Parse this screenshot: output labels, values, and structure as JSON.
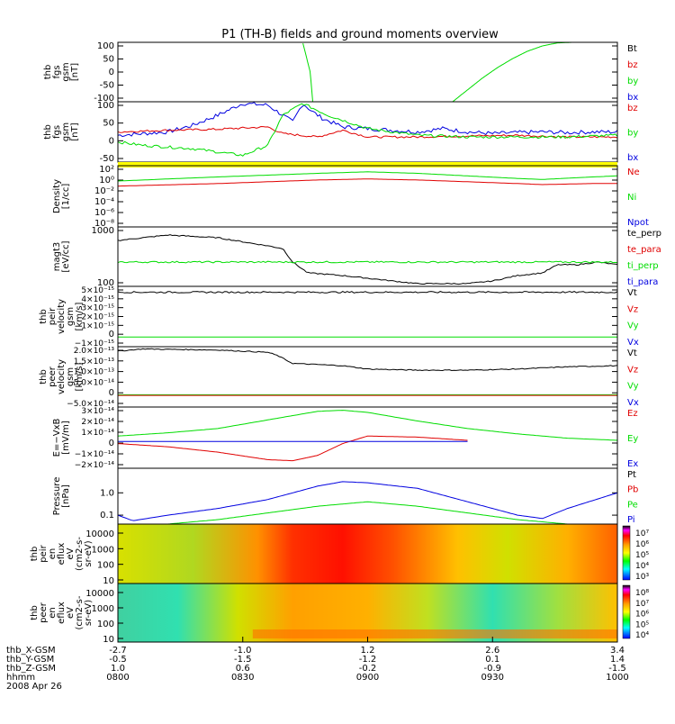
{
  "title": "P1 (TH-B) fields and ground moments overview",
  "colors": {
    "black": "#000000",
    "red": "#e00000",
    "green": "#00dd00",
    "blue": "#0000e0",
    "yellow": "#ffff00"
  },
  "chart_data": [
    {
      "id": "bt_panel",
      "type": "line",
      "ylabel": [
        "thb",
        "fgs",
        "gsm",
        "[nT]"
      ],
      "yticks": [
        "100",
        "50",
        "0",
        "-50",
        "-100"
      ],
      "ylim": [
        -100,
        100
      ],
      "legend": [
        {
          "label": "Bt",
          "color": "black"
        },
        {
          "label": "bz",
          "color": "red"
        },
        {
          "label": "by",
          "color": "green"
        },
        {
          "label": "bx",
          "color": "blue"
        }
      ],
      "series": [
        {
          "color": "green",
          "x": [
            0,
            0.37,
            0.385,
            0.39
          ],
          "y": [
            null,
            100,
            0,
            -100
          ]
        },
        {
          "color": "green",
          "x": [
            0.67,
            0.7,
            0.73,
            0.76,
            0.79,
            0.82,
            0.85,
            0.88,
            0.91
          ],
          "y": [
            -100,
            -60,
            -20,
            15,
            45,
            70,
            88,
            98,
            100
          ]
        }
      ]
    },
    {
      "id": "bfield_panel",
      "type": "line",
      "ylabel": [
        "thb",
        "fgs",
        "gsm",
        "[nT]"
      ],
      "yticks": [
        "100",
        "50",
        "0",
        "-50"
      ],
      "ylim": [
        -80,
        100
      ],
      "legend": [
        {
          "label": "bz",
          "color": "red"
        },
        {
          "label": "by",
          "color": "green"
        },
        {
          "label": "bx",
          "color": "blue"
        }
      ],
      "series": [
        {
          "color": "blue",
          "noise": 6,
          "x": [
            0,
            0.05,
            0.1,
            0.15,
            0.2,
            0.25,
            0.3,
            0.33,
            0.35,
            0.37,
            0.39,
            0.41,
            0.45,
            0.5,
            0.55,
            0.6,
            0.65,
            0.7,
            0.75,
            0.8,
            0.85,
            0.9,
            0.95,
            1.0
          ],
          "y": [
            0,
            5,
            10,
            30,
            60,
            95,
            90,
            60,
            40,
            95,
            70,
            50,
            25,
            20,
            15,
            10,
            20,
            10,
            5,
            8,
            10,
            8,
            10,
            10
          ]
        },
        {
          "color": "red",
          "noise": 3,
          "x": [
            0,
            0.1,
            0.2,
            0.3,
            0.33,
            0.4,
            0.45,
            0.5,
            0.6,
            0.7,
            0.8,
            0.9,
            1.0
          ],
          "y": [
            10,
            15,
            18,
            25,
            5,
            -5,
            15,
            -5,
            -5,
            -2,
            0,
            -5,
            -5
          ]
        },
        {
          "color": "green",
          "noise": 4,
          "x": [
            0,
            0.05,
            0.1,
            0.15,
            0.2,
            0.25,
            0.3,
            0.33,
            0.37,
            0.42,
            0.46,
            0.5,
            0.6,
            0.7,
            0.8,
            0.9,
            1.0
          ],
          "y": [
            -20,
            -30,
            -35,
            -40,
            -50,
            -60,
            -30,
            60,
            95,
            60,
            40,
            20,
            0,
            -5,
            -5,
            -5,
            0
          ]
        }
      ]
    },
    {
      "id": "density_panel",
      "type": "line",
      "log": true,
      "ylabel": [
        "Density",
        "[1/cc]"
      ],
      "yticks": [
        "10²",
        "10⁰",
        "10⁻²",
        "10⁻⁴",
        "10⁻⁶",
        "10⁻⁸"
      ],
      "ylim": [
        -9,
        3
      ],
      "legend": [
        {
          "label": "Ne",
          "color": "red"
        },
        {
          "label": "Ni",
          "color": "green"
        },
        {
          "label": "Npot",
          "color": "blue"
        }
      ],
      "series": [
        {
          "color": "green",
          "x": [
            0,
            0.2,
            0.4,
            0.5,
            0.6,
            0.8,
            0.85,
            0.95,
            1.0
          ],
          "y": [
            0,
            0.8,
            1.5,
            1.8,
            1.5,
            0.5,
            0.3,
            0.8,
            1.0
          ]
        },
        {
          "color": "red",
          "x": [
            0,
            0.2,
            0.4,
            0.5,
            0.6,
            0.8,
            0.85,
            0.95,
            1.0
          ],
          "y": [
            -1,
            -0.5,
            0.2,
            0.4,
            0.2,
            -0.5,
            -0.7,
            -0.5,
            -0.5
          ]
        }
      ]
    },
    {
      "id": "temp_panel",
      "type": "line",
      "log": true,
      "ylabel": [
        "magt3",
        "[eV/cc]"
      ],
      "yticks": [
        "1000",
        "100"
      ],
      "ylim": [
        2,
        3.1
      ],
      "legend": [
        {
          "label": "te_perp",
          "color": "black"
        },
        {
          "label": "te_para",
          "color": "red"
        },
        {
          "label": "ti_perp",
          "color": "green"
        },
        {
          "label": "ti_para",
          "color": "blue"
        }
      ],
      "series": [
        {
          "color": "black",
          "noise": 0.01,
          "x": [
            0,
            0.05,
            0.1,
            0.2,
            0.3,
            0.33,
            0.35,
            0.38,
            0.45,
            0.5,
            0.6,
            0.7,
            0.75,
            0.8,
            0.85,
            0.88,
            0.92,
            0.96,
            1.0
          ],
          "y": [
            2.85,
            2.9,
            2.95,
            2.9,
            2.75,
            2.7,
            2.45,
            2.25,
            2.2,
            2.15,
            2.05,
            2.05,
            2.1,
            2.2,
            2.25,
            2.4,
            2.4,
            2.45,
            2.4
          ]
        },
        {
          "color": "green",
          "noise": 0.015,
          "x": [
            0,
            0.5,
            1.0
          ],
          "y": [
            2.45,
            2.45,
            2.45
          ]
        }
      ]
    },
    {
      "id": "peir_velocity_panel",
      "type": "line",
      "ylabel": [
        "thb",
        "peir",
        "velocity",
        "gsm",
        "[km/s]"
      ],
      "yticks": [
        "5×10⁻¹⁵",
        "4×10⁻¹⁵",
        "3×10⁻¹⁵",
        "2×10⁻¹⁵",
        "1×10⁻¹⁵",
        "0",
        "−1×10⁻¹⁵"
      ],
      "ylim": [
        -1,
        5.2
      ],
      "legend": [
        {
          "label": "Vt",
          "color": "black"
        },
        {
          "label": "Vz",
          "color": "red"
        },
        {
          "label": "Vy",
          "color": "green"
        },
        {
          "label": "Vx",
          "color": "blue"
        }
      ],
      "series": [
        {
          "color": "black",
          "noise": 0.08,
          "x": [
            0,
            1
          ],
          "y": [
            4.6,
            4.6
          ]
        },
        {
          "color": "green",
          "x": [
            0,
            1
          ],
          "y": [
            0,
            0
          ]
        }
      ]
    },
    {
      "id": "peer_velocity_panel",
      "type": "line",
      "ylabel": [
        "thb",
        "peer",
        "velocity",
        "gsm",
        "[km/s]"
      ],
      "yticks": [
        "2.0×10⁻¹³",
        "1.5×10⁻¹³",
        "1.0×10⁻¹³",
        "5.0×10⁻¹⁴",
        "0",
        "−5.0×10⁻¹⁴"
      ],
      "ylim": [
        -0.5,
        2.2
      ],
      "legend": [
        {
          "label": "Vt",
          "color": "black"
        },
        {
          "label": "Vz",
          "color": "red"
        },
        {
          "label": "Vy",
          "color": "green"
        },
        {
          "label": "Vx",
          "color": "blue"
        }
      ],
      "series": [
        {
          "color": "black",
          "noise": 0.02,
          "x": [
            0,
            0.05,
            0.2,
            0.3,
            0.32,
            0.35,
            0.4,
            0.45,
            0.5,
            0.6,
            0.7,
            0.8,
            0.85,
            0.9,
            1.0
          ],
          "y": [
            2.0,
            2.1,
            2.05,
            1.95,
            1.8,
            1.45,
            1.4,
            1.35,
            1.2,
            1.15,
            1.15,
            1.2,
            1.25,
            1.3,
            1.35
          ]
        },
        {
          "color": "green",
          "x": [
            0,
            1
          ],
          "y": [
            0.05,
            0.05
          ]
        },
        {
          "color": "red",
          "x": [
            0,
            1
          ],
          "y": [
            0.02,
            0.02
          ]
        }
      ]
    },
    {
      "id": "efield_panel",
      "type": "line",
      "ylabel": [
        "E=−VxB",
        "[mV/m]"
      ],
      "yticks": [
        "3×10⁻¹⁴",
        "2×10⁻¹⁴",
        "1×10⁻¹⁴",
        "0",
        "−1×10⁻¹⁴",
        "−2×10⁻¹⁴"
      ],
      "ylim": [
        -2.5,
        3.2
      ],
      "legend": [
        {
          "label": "Ez",
          "color": "red"
        },
        {
          "label": "Ey",
          "color": "green"
        },
        {
          "label": "Ex",
          "color": "blue"
        }
      ],
      "series": [
        {
          "color": "green",
          "x": [
            0,
            0.1,
            0.2,
            0.3,
            0.4,
            0.45,
            0.5,
            0.55,
            0.6,
            0.7,
            0.8,
            0.9,
            1.0
          ],
          "y": [
            0.5,
            0.8,
            1.2,
            2.0,
            2.8,
            2.9,
            2.7,
            2.3,
            1.9,
            1.2,
            0.7,
            0.3,
            0.1
          ]
        },
        {
          "color": "red",
          "x": [
            0,
            0.1,
            0.2,
            0.3,
            0.35,
            0.4,
            0.45,
            0.5,
            0.6,
            0.7
          ],
          "y": [
            -0.2,
            -0.5,
            -1.0,
            -1.7,
            -1.8,
            -1.3,
            -0.2,
            0.5,
            0.4,
            0.1
          ]
        },
        {
          "color": "blue",
          "x": [
            0.0,
            0.7
          ],
          "y": [
            0.0,
            0.0
          ]
        }
      ]
    },
    {
      "id": "pressure_panel",
      "type": "line",
      "log": true,
      "ylabel": [
        "Pressure",
        "[nPa]"
      ],
      "yticks": [
        "1.0",
        "0.1"
      ],
      "ylim": [
        -1.4,
        1.1
      ],
      "ytickvals": [
        0,
        -1
      ],
      "legend": [
        {
          "label": "Pt",
          "color": "black"
        },
        {
          "label": "Pb",
          "color": "red"
        },
        {
          "label": "Pe",
          "color": "green"
        },
        {
          "label": "Pi",
          "color": "blue"
        }
      ],
      "series": [
        {
          "color": "blue",
          "x": [
            0,
            0.03,
            0.1,
            0.2,
            0.3,
            0.4,
            0.45,
            0.5,
            0.6,
            0.7,
            0.8,
            0.85,
            0.9,
            1.0
          ],
          "y": [
            -1.0,
            -1.25,
            -1.0,
            -0.7,
            -0.3,
            0.3,
            0.5,
            0.45,
            0.2,
            -0.4,
            -1.0,
            -1.15,
            -0.7,
            0.0
          ]
        },
        {
          "color": "green",
          "x": [
            0,
            0.1,
            0.2,
            0.3,
            0.4,
            0.5,
            0.6,
            0.7,
            0.8,
            0.9,
            1.0
          ],
          "y": [
            -1.4,
            -1.4,
            -1.2,
            -0.9,
            -0.6,
            -0.4,
            -0.6,
            -0.9,
            -1.2,
            -1.4,
            -1.4
          ]
        }
      ]
    },
    {
      "id": "peir_spectrogram",
      "type": "heatmap",
      "ylabel": [
        "thb",
        "peir",
        "en",
        "eflux",
        "eV",
        "(cm2-s-",
        "sr-eV)"
      ],
      "yticks": [
        "10000",
        "1000",
        "100",
        "10"
      ],
      "colorbar": [
        "10⁷",
        "10⁶",
        "10⁵",
        "10⁴",
        "10³"
      ]
    },
    {
      "id": "peer_spectrogram",
      "type": "heatmap",
      "ylabel": [
        "thb",
        "peer",
        "en",
        "eflux",
        "eV",
        "(cm2-s-",
        "sr-eV)"
      ],
      "yticks": [
        "10000",
        "1000",
        "100",
        "10"
      ],
      "colorbar": [
        "10⁸",
        "10⁷",
        "10⁶",
        "10⁵",
        "10⁴"
      ]
    }
  ],
  "xaxis": {
    "row_labels": [
      "thb_X-GSM",
      "thb_Y-GSM",
      "thb_Z-GSM",
      "hhmm",
      "2008 Apr 26"
    ],
    "ticks": [
      {
        "x": -2.7,
        "y": -0.5,
        "z": 1.0,
        "t": "0800"
      },
      {
        "x": -1.0,
        "y": -1.5,
        "z": 0.6,
        "t": "0830"
      },
      {
        "x": 1.2,
        "y": -1.2,
        "z": -0.2,
        "t": "0900"
      },
      {
        "x": 2.6,
        "y": 0.1,
        "z": -0.9,
        "t": "0930"
      },
      {
        "x": 3.4,
        "y": 1.4,
        "z": -1.5,
        "t": "1000"
      }
    ]
  }
}
